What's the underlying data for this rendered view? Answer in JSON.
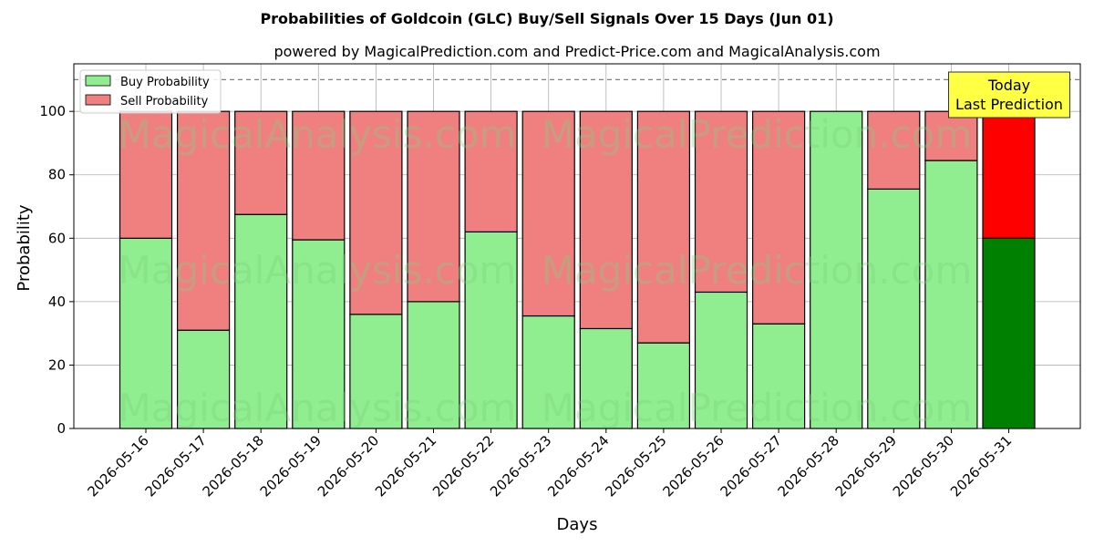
{
  "chart_data": {
    "type": "bar",
    "stacked": true,
    "title": "Probabilities of Goldcoin (GLC) Buy/Sell Signals Over 15 Days (Jun 01)",
    "subtitle": "powered by MagicalPrediction.com and Predict-Price.com and MagicalAnalysis.com",
    "xlabel": "Days",
    "ylabel": "Probability",
    "ylim": [
      0,
      115
    ],
    "yticks": [
      0,
      20,
      40,
      60,
      80,
      100
    ],
    "reference_line": 110,
    "grid": true,
    "legend_position": "top-left",
    "categories": [
      "2026-05-16",
      "2026-05-17",
      "2026-05-18",
      "2026-05-19",
      "2026-05-20",
      "2026-05-21",
      "2026-05-22",
      "2026-05-23",
      "2026-05-24",
      "2026-05-25",
      "2026-05-26",
      "2026-05-27",
      "2026-05-28",
      "2026-05-29",
      "2026-05-30",
      "2026-05-31"
    ],
    "series": [
      {
        "name": "Buy Probability",
        "color": "#90ee90",
        "highlight_color": "#008000",
        "values": [
          60,
          31,
          67.5,
          59.5,
          36,
          40,
          62,
          35.5,
          31.5,
          27,
          43,
          33,
          100,
          75.5,
          84.5,
          60
        ]
      },
      {
        "name": "Sell Probability",
        "color": "#f08080",
        "highlight_color": "#ff0000",
        "values": [
          40,
          69,
          32.5,
          40.5,
          64,
          60,
          38,
          64.5,
          68.5,
          73,
          57,
          67,
          0,
          24.5,
          15.5,
          40
        ]
      }
    ],
    "annotation": {
      "lines": [
        "Today",
        "Last Prediction"
      ],
      "background": "#ffff44"
    },
    "watermarks": [
      "MagicalAnalysis.com",
      "MagicalPrediction.com"
    ]
  }
}
